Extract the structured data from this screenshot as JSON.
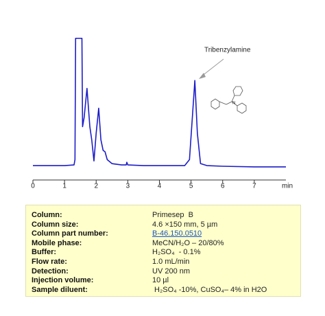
{
  "chart_data": {
    "type": "line",
    "x": [
      0,
      0.5,
      1.0,
      1.3,
      1.33,
      1.35,
      1.55,
      1.57,
      1.62,
      1.71,
      1.8,
      1.86,
      1.93,
      2.0,
      2.08,
      2.15,
      2.22,
      2.28,
      2.35,
      2.5,
      2.8,
      2.95,
      2.97,
      3.0,
      3.5,
      4.0,
      4.5,
      4.8,
      4.95,
      5.05,
      5.12,
      5.2,
      5.3,
      5.5,
      6,
      7,
      8
    ],
    "series": [
      {
        "color": "#1c1cc8",
        "values": [
          0.5,
          0.5,
          0.5,
          1,
          5,
          97,
          97,
          30,
          37,
          59,
          30,
          20,
          4,
          25,
          44,
          20,
          12,
          11,
          5,
          2,
          1,
          1,
          3,
          1,
          0.5,
          0.5,
          0.5,
          0.5,
          5,
          40,
          65,
          25,
          2,
          0.5,
          0,
          -0.5,
          -0.5
        ]
      }
    ],
    "xlim": [
      0,
      8
    ],
    "xticks": [
      0,
      1,
      2,
      3,
      4,
      5,
      6,
      7
    ],
    "x_label": "min",
    "ylim": [
      0,
      100
    ],
    "annotation": "Tribenzylamine"
  },
  "table": {
    "rows": [
      [
        "Column:",
        "Primesep  B"
      ],
      [
        "Column size:",
        "4.6 ×150 mm, 5 µm"
      ],
      [
        "Column part number:",
        "B-46.150.0510"
      ],
      [
        "Mobile phase:",
        "MeCN/H₂O – 20/80%"
      ],
      [
        "Buffer:",
        "H₂SO₄  - 0.1%"
      ],
      [
        "Flow rate:",
        "1.0 mL/min"
      ],
      [
        "Detection:",
        "UV 200 nm"
      ],
      [
        "Injection volume:",
        "10 µl"
      ],
      [
        "Sample diluent:",
        " H₂SO₄ -10%, CuSO₄– 4% in H2O"
      ]
    ]
  }
}
